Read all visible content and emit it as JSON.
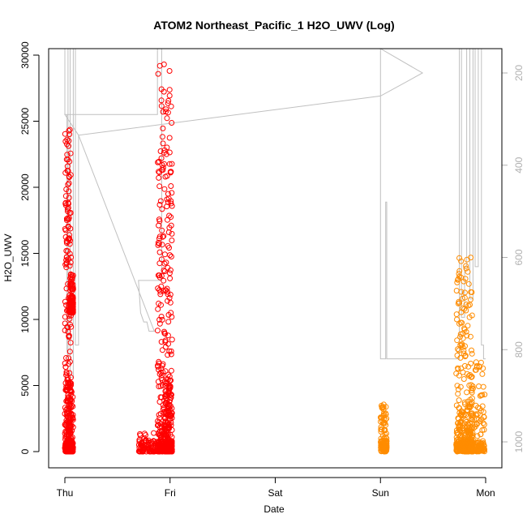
{
  "chart_data": {
    "type": "scatter",
    "title": "ATOM2 Northeast_Pacific_1 H2O_UWV (Log)",
    "xlabel": "Date",
    "ylabel": "H2O_UWV",
    "x_ticks": [
      "Thu",
      "Fri",
      "Sat",
      "Sun",
      "Mon"
    ],
    "x_range_days": [
      0,
      4
    ],
    "ylim": [
      0,
      30000
    ],
    "y_ticks": [
      0,
      5000,
      10000,
      15000,
      20000,
      25000,
      30000
    ],
    "y2_ticks": [
      200,
      400,
      600,
      800,
      1000
    ],
    "y2_range": [
      1060,
      60
    ],
    "grid": false,
    "colors": {
      "series_red": "#ff0000",
      "series_orange": "#ff8c00",
      "secondary_line": "#c0c0c0"
    },
    "series": [
      {
        "color": "#ff0000",
        "clusters": [
          {
            "day_range": [
              0.0,
              0.06
            ],
            "y_low": 0,
            "y_high": 24500
          },
          {
            "day_range": [
              0.03,
              0.08
            ],
            "y_low": 0,
            "y_high": 5000
          },
          {
            "day_range": [
              0.05,
              0.08
            ],
            "y_low": 10500,
            "y_high": 13600
          },
          {
            "day_range": [
              0.7,
              0.93
            ],
            "y_low": 0,
            "y_high": 1500
          },
          {
            "day_range": [
              0.88,
              1.02
            ],
            "y_low": 0,
            "y_high": 29500
          },
          {
            "day_range": [
              0.95,
              1.02
            ],
            "y_low": 0,
            "y_high": 5000
          }
        ]
      },
      {
        "color": "#ff8c00",
        "clusters": [
          {
            "day_range": [
              3.0,
              3.06
            ],
            "y_low": 0,
            "y_high": 3600
          },
          {
            "day_range": [
              3.72,
              3.88
            ],
            "y_low": 0,
            "y_high": 3000
          },
          {
            "day_range": [
              3.72,
              3.88
            ],
            "y_low": 0,
            "y_high": 14800
          },
          {
            "day_range": [
              3.82,
              3.99
            ],
            "y_low": 0,
            "y_high": 6800
          }
        ]
      }
    ],
    "secondary_line_y2": [
      [
        0.0,
        60
      ],
      [
        0.0,
        290
      ],
      [
        0.02,
        290
      ],
      [
        0.02,
        800
      ],
      [
        0.03,
        820
      ],
      [
        0.03,
        60
      ],
      [
        0.05,
        60
      ],
      [
        0.05,
        860
      ],
      [
        0.08,
        860
      ],
      [
        0.08,
        60
      ],
      [
        0.1,
        60
      ],
      [
        0.1,
        790
      ],
      [
        0.13,
        790
      ],
      [
        0.13,
        335
      ],
      [
        0.0,
        290
      ],
      [
        0.88,
        290
      ],
      [
        0.88,
        60
      ],
      [
        0.92,
        60
      ],
      [
        0.92,
        650
      ],
      [
        0.7,
        650
      ],
      [
        0.72,
        720
      ],
      [
        0.75,
        740
      ],
      [
        0.78,
        740
      ],
      [
        0.8,
        760
      ],
      [
        0.85,
        760
      ],
      [
        0.13,
        335
      ],
      [
        3.0,
        250
      ],
      [
        3.4,
        200
      ],
      [
        3.0,
        60
      ],
      [
        3.0,
        820
      ],
      [
        3.05,
        820
      ],
      [
        3.05,
        480
      ],
      [
        3.06,
        480
      ],
      [
        3.06,
        820
      ],
      [
        3.75,
        820
      ],
      [
        3.75,
        60
      ],
      [
        3.77,
        60
      ],
      [
        3.77,
        730
      ],
      [
        3.8,
        730
      ],
      [
        3.8,
        620
      ],
      [
        3.82,
        620
      ],
      [
        3.82,
        60
      ],
      [
        3.85,
        60
      ],
      [
        3.85,
        690
      ],
      [
        3.88,
        690
      ],
      [
        3.88,
        60
      ],
      [
        3.9,
        60
      ],
      [
        3.9,
        620
      ],
      [
        3.93,
        620
      ],
      [
        3.93,
        60
      ],
      [
        3.96,
        60
      ],
      [
        3.96,
        790
      ],
      [
        3.98,
        790
      ],
      [
        3.98,
        820
      ],
      [
        4.0,
        820
      ]
    ]
  }
}
